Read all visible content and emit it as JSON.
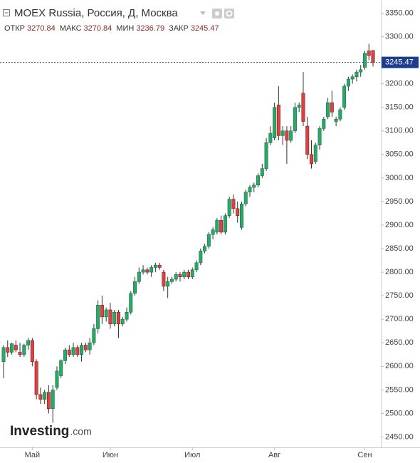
{
  "chart_data": {
    "type": "candlestick",
    "title": "MOEX Russia, Россия, Д, Москва",
    "legend_items": [
      {
        "label": "ОТКР",
        "value": 3270.84
      },
      {
        "label": "МАКС",
        "value": 3270.84
      },
      {
        "label": "МИН",
        "value": 3236.79
      },
      {
        "label": "ЗАКР",
        "value": 3245.47
      }
    ],
    "last_price": {
      "value": 3245.47,
      "label": "3245.47"
    },
    "watermark": {
      "brand": "Investing",
      "suffix": ".com"
    },
    "up_color": "#2aa86a",
    "down_color": "#d94343",
    "categories": [
      null,
      null,
      null,
      null,
      null,
      null,
      null,
      "Май",
      null,
      null,
      null,
      null,
      null,
      null,
      null,
      null,
      null,
      null,
      null,
      null,
      null,
      null,
      null,
      null,
      null,
      null,
      "Июн",
      null,
      null,
      null,
      null,
      null,
      null,
      null,
      null,
      null,
      null,
      null,
      null,
      null,
      null,
      null,
      null,
      null,
      null,
      null,
      "Июл",
      null,
      null,
      null,
      null,
      null,
      null,
      null,
      null,
      null,
      null,
      null,
      null,
      null,
      null,
      null,
      null,
      null,
      null,
      null,
      "Авг",
      null,
      null,
      null,
      null,
      null,
      null,
      null,
      null,
      null,
      null,
      null,
      null,
      null,
      null,
      null,
      null,
      null,
      null,
      null,
      null,
      null,
      "Сен",
      null,
      null
    ],
    "open": [
      2610,
      2640,
      2630,
      2645,
      2630,
      2625,
      2645,
      2655,
      2610,
      2540,
      2530,
      2545,
      2510,
      2555,
      2580,
      2612,
      2635,
      2625,
      2640,
      2625,
      2645,
      2635,
      2650,
      2680,
      2730,
      2705,
      2720,
      2690,
      2715,
      2690,
      2700,
      2715,
      2755,
      2780,
      2800,
      2805,
      2800,
      2810,
      2815,
      2800,
      2770,
      2780,
      2785,
      2795,
      2790,
      2800,
      2790,
      2805,
      2820,
      2845,
      2855,
      2880,
      2885,
      2910,
      2885,
      2920,
      2955,
      2935,
      2895,
      2945,
      2970,
      2980,
      2985,
      3005,
      3020,
      3075,
      3085,
      3155,
      3090,
      3100,
      3080,
      3100,
      3150,
      3180,
      3110,
      3050,
      3035,
      3070,
      3105,
      3130,
      3160,
      3120,
      3125,
      3150,
      3195,
      3210,
      3215,
      3225,
      3235,
      3270,
      3270.84
    ],
    "high": [
      2645,
      2655,
      2650,
      2655,
      2650,
      2648,
      2660,
      2660,
      2615,
      2555,
      2550,
      2560,
      2560,
      2600,
      2615,
      2640,
      2645,
      2650,
      2645,
      2650,
      2650,
      2660,
      2690,
      2740,
      2750,
      2725,
      2735,
      2720,
      2720,
      2705,
      2725,
      2760,
      2790,
      2810,
      2815,
      2810,
      2815,
      2820,
      2820,
      2805,
      2790,
      2790,
      2800,
      2800,
      2805,
      2805,
      2810,
      2825,
      2850,
      2860,
      2885,
      2895,
      2915,
      2920,
      2925,
      2960,
      2965,
      2950,
      2950,
      2975,
      2985,
      2990,
      3010,
      3030,
      3085,
      3110,
      3160,
      3195,
      3110,
      3110,
      3110,
      3160,
      3160,
      3225,
      3130,
      3080,
      3075,
      3110,
      3130,
      3170,
      3185,
      3130,
      3150,
      3200,
      3215,
      3220,
      3230,
      3240,
      3270,
      3285,
      3270.84
    ],
    "low": [
      2575,
      2620,
      2625,
      2630,
      2620,
      2620,
      2635,
      2600,
      2530,
      2520,
      2520,
      2500,
      2480,
      2550,
      2575,
      2605,
      2620,
      2620,
      2620,
      2610,
      2630,
      2625,
      2645,
      2670,
      2690,
      2695,
      2680,
      2685,
      2660,
      2685,
      2695,
      2710,
      2750,
      2775,
      2795,
      2795,
      2790,
      2800,
      2805,
      2760,
      2745,
      2775,
      2780,
      2780,
      2785,
      2785,
      2785,
      2800,
      2815,
      2840,
      2850,
      2870,
      2880,
      2880,
      2880,
      2915,
      2925,
      2905,
      2890,
      2940,
      2960,
      2970,
      2980,
      3000,
      3015,
      3070,
      3080,
      3080,
      3070,
      3030,
      3075,
      3095,
      3140,
      3110,
      3040,
      3020,
      3030,
      3060,
      3100,
      3125,
      3130,
      3110,
      3120,
      3145,
      3185,
      3200,
      3205,
      3215,
      3230,
      3250,
      3236.79
    ],
    "close": [
      2640,
      2630,
      2648,
      2635,
      2625,
      2645,
      2655,
      2610,
      2540,
      2530,
      2545,
      2510,
      2550,
      2590,
      2612,
      2635,
      2625,
      2640,
      2625,
      2645,
      2635,
      2650,
      2680,
      2730,
      2705,
      2720,
      2690,
      2715,
      2690,
      2700,
      2715,
      2755,
      2780,
      2800,
      2805,
      2800,
      2810,
      2815,
      2810,
      2770,
      2780,
      2785,
      2795,
      2790,
      2800,
      2790,
      2805,
      2820,
      2845,
      2855,
      2880,
      2890,
      2910,
      2885,
      2920,
      2955,
      2935,
      2920,
      2945,
      2970,
      2980,
      2985,
      3005,
      3020,
      3075,
      3095,
      3150,
      3090,
      3100,
      3080,
      3100,
      3150,
      3155,
      3120,
      3050,
      3030,
      3070,
      3105,
      3125,
      3160,
      3140,
      3125,
      3145,
      3195,
      3210,
      3215,
      3225,
      3230,
      3265,
      3260,
      3245.47
    ],
    "ylim": [
      2428,
      3378
    ],
    "yticks": [
      {
        "value": 2450,
        "label": "2450.00"
      },
      {
        "value": 2500,
        "label": "2500.00"
      },
      {
        "value": 2550,
        "label": "2550.00"
      },
      {
        "value": 2600,
        "label": "2600.00"
      },
      {
        "value": 2650,
        "label": "2650.00"
      },
      {
        "value": 2700,
        "label": "2700.00"
      },
      {
        "value": 2750,
        "label": "2750.00"
      },
      {
        "value": 2800,
        "label": "2800.00"
      },
      {
        "value": 2850,
        "label": "2850.00"
      },
      {
        "value": 2900,
        "label": "2900.00"
      },
      {
        "value": 2950,
        "label": "2950.00"
      },
      {
        "value": 3000,
        "label": "3000.00"
      },
      {
        "value": 3050,
        "label": "3050.00"
      },
      {
        "value": 3100,
        "label": "3100.00"
      },
      {
        "value": 3150,
        "label": "3150.00"
      },
      {
        "value": 3200,
        "label": "3200.00"
      },
      {
        "value": 3250,
        "label": "3250.00"
      },
      {
        "value": 3300,
        "label": "3300.00"
      },
      {
        "value": 3350,
        "label": "3350.00"
      }
    ],
    "grid": false
  }
}
